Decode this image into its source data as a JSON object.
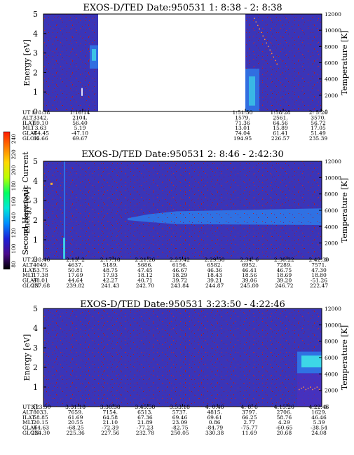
{
  "colors": {
    "background_spectrum": "#3a35b8",
    "noise": "#b02020",
    "band": "#2f78e8",
    "band_hot": "#40e8e8",
    "gap": "#ffffff"
  },
  "colorbar": {
    "label": "Second Harmonic Current",
    "ticks": [
      "240",
      "220",
      "200",
      "180",
      "160",
      "140",
      "120",
      "100",
      "80"
    ],
    "colors": [
      "#ff1a00",
      "#ff7a00",
      "#ffd800",
      "#b8ff00",
      "#00ff60",
      "#00e8d8",
      "#008cff",
      "#1d20d8",
      "#4b0a8c",
      "#000000"
    ]
  },
  "chart_data": [
    {
      "type": "heatmap",
      "title": "EXOS-D/TED   Date:950531  1: 8:38 - 2: 8:38",
      "ylabel": "Energy [eV]",
      "ylabel_right": "Temperature [K]",
      "ylim": [
        0,
        5
      ],
      "ylim_right": [
        0,
        12000
      ],
      "yticks": [
        "0",
        "1",
        "2",
        "3",
        "4",
        "5"
      ],
      "yticks_right": [
        "0",
        "2000",
        "4000",
        "6000",
        "8000",
        "10000",
        "12000"
      ],
      "row_labels": [
        "UT",
        "ALT",
        "ILAT",
        "MLT",
        "GLAT",
        "GLON"
      ],
      "columns": [
        {
          "UT": "1: 8:38",
          "ALT": "3342.",
          "ILAT": "69.10",
          "MLT": "3.63",
          "GLAT": "-64.45",
          "GLON": "65.66"
        },
        {
          "UT": "1:16:14",
          "ALT": "2104.",
          "ILAT": "56.40",
          "MLT": "5.19",
          "GLAT": "-47.10",
          "GLON": "69.67"
        },
        {
          "UT": "1:51:50",
          "ALT": "1579.",
          "ILAT": "71.36",
          "MLT": "13.01",
          "GLAT": "74.04",
          "GLON": "194.95"
        },
        {
          "UT": "1:58:28",
          "ALT": "2561.",
          "ILAT": "64.56",
          "MLT": "15.89",
          "GLAT": "61.41",
          "GLON": "226.57"
        },
        {
          "UT": "2: 5:26",
          "ALT": "3570.",
          "ILAT": "56.72",
          "MLT": "17.05",
          "GLAT": "51.49",
          "GLON": "235.39"
        }
      ],
      "data_gap": [
        "1:16:14",
        "1:51:50"
      ],
      "features": [
        {
          "time": "1:16",
          "energy_range": [
            2.2,
            3.4
          ],
          "note": "light band"
        },
        {
          "time": "1:52-1:55",
          "energy_range": [
            0,
            2.2
          ],
          "note": "bright burst"
        }
      ]
    },
    {
      "type": "heatmap",
      "title": "EXOS-D/TED   Date:950531  2: 8:46 - 2:42:30",
      "ylabel": "Energy [eV]",
      "ylabel_right": "Temperature [K]",
      "ylim": [
        0,
        5
      ],
      "ylim_right": [
        0,
        12000
      ],
      "yticks": [
        "0",
        "1",
        "2",
        "3",
        "4",
        "5"
      ],
      "yticks_right": [
        "0",
        "2000",
        "4000",
        "6000",
        "8000",
        "10000",
        "12000"
      ],
      "row_labels": [
        "UT",
        "ALT",
        "ILAT",
        "MLT",
        "GLAT",
        "GLON"
      ],
      "columns": [
        {
          "UT": "2: 8:46",
          "ALT": "4049.",
          "ILAT": "53.75",
          "MLT": "17.38",
          "GLAT": "48.01",
          "GLON": "237.68"
        },
        {
          "UT": "2:13: 2",
          "ALT": "4637.",
          "ILAT": "50.81",
          "MLT": "17.69",
          "GLAT": "44.64",
          "GLON": "239.82"
        },
        {
          "UT": "2:17:18",
          "ALT": "5189.",
          "ILAT": "48.75",
          "MLT": "17.93",
          "GLAT": "42.27",
          "GLON": "241.43"
        },
        {
          "UT": "2:21:26",
          "ALT": "5686.",
          "ILAT": "47.45",
          "MLT": "18.12",
          "GLAT": "40.71",
          "GLON": "242.70"
        },
        {
          "UT": "2:25:42",
          "ALT": "6156.",
          "ILAT": "46.67",
          "MLT": "18.29",
          "GLAT": "39.72",
          "GLON": "243.84"
        },
        {
          "UT": "2:29:58",
          "ALT": "6582.",
          "ILAT": "46.36",
          "MLT": "18.43",
          "GLAT": "39.21",
          "GLON": "244.87"
        },
        {
          "UT": "2:34: 6",
          "ALT": "6952.",
          "ILAT": "46.41",
          "MLT": "18.56",
          "GLAT": "39.06",
          "GLON": "245.80"
        },
        {
          "UT": "2:38:22",
          "ALT": "7289.",
          "ILAT": "46.75",
          "MLT": "18.69",
          "GLAT": "39.20",
          "GLON": "246.72"
        },
        {
          "UT": "2:42:30",
          "ALT": "7571.",
          "ILAT": "47.30",
          "MLT": "18.80",
          "GLAT": "-51.26",
          "GLON": "222.47"
        }
      ],
      "features": [
        {
          "time": "2:10",
          "energy_range": [
            0,
            5
          ],
          "note": "vertical streak"
        },
        {
          "time": "2:20-2:42",
          "energy_range": [
            1.7,
            2.6
          ],
          "note": "light band"
        }
      ]
    },
    {
      "type": "heatmap",
      "title": "EXOS-D/TED   Date:950531  3:23:50 - 4:22:46",
      "ylabel": "Energy [eV]",
      "ylabel_right": "Temperature [K]",
      "ylim": [
        0,
        5
      ],
      "ylim_right": [
        0,
        12000
      ],
      "yticks": [
        "0",
        "1",
        "2",
        "3",
        "4",
        "5"
      ],
      "yticks_right": [
        "0",
        "2000",
        "4000",
        "6000",
        "8000",
        "10000",
        "12000"
      ],
      "row_labels": [
        "UT",
        "ALT",
        "ILAT",
        "MLT",
        "GLAT",
        "GLON"
      ],
      "columns": [
        {
          "UT": "3:23:50",
          "ALT": "8033.",
          "ILAT": "58.85",
          "MLT": "20.15",
          "GLAT": "-64.63",
          "GLON": "224.30"
        },
        {
          "UT": "3:31:18",
          "ALT": "7659.",
          "ILAT": "61.69",
          "MLT": "20.55",
          "GLAT": "-68.25",
          "GLON": "225.36"
        },
        {
          "UT": "3:38:38",
          "ALT": "7154.",
          "ILAT": "64.58",
          "MLT": "21.10",
          "GLAT": "-72.39",
          "GLON": "227.56"
        },
        {
          "UT": "3:45:58",
          "ALT": "6513.",
          "ILAT": "67.36",
          "MLT": "21.89",
          "GLAT": "-77.23",
          "GLON": "232.78"
        },
        {
          "UT": "3:53:18",
          "ALT": "5737.",
          "ILAT": "69.46",
          "MLT": "23.09",
          "GLAT": "-82.75",
          "GLON": "250.05"
        },
        {
          "UT": "4: 0:46",
          "ALT": "4815.",
          "ILAT": "69.61",
          "MLT": "0.86",
          "GLAT": "-84.79",
          "GLON": "330.38"
        },
        {
          "UT": "4: 8: 6",
          "ALT": "3797.",
          "ILAT": "66.25",
          "MLT": "2.77",
          "GLAT": "-75.77",
          "GLON": "11.69"
        },
        {
          "UT": "4:15:26",
          "ALT": "2706.",
          "ILAT": "58.76",
          "MLT": "4.29",
          "GLAT": "-60.65",
          "GLON": "20.68"
        },
        {
          "UT": "4:22:46",
          "ALT": "1629.",
          "ILAT": "46.46",
          "MLT": "5.39",
          "GLAT": "-38.54",
          "GLON": "24.08"
        }
      ],
      "features": [
        {
          "time": "4:17-4:22",
          "energy_range": [
            1.8,
            2.7
          ],
          "note": "bright burst"
        }
      ]
    }
  ]
}
